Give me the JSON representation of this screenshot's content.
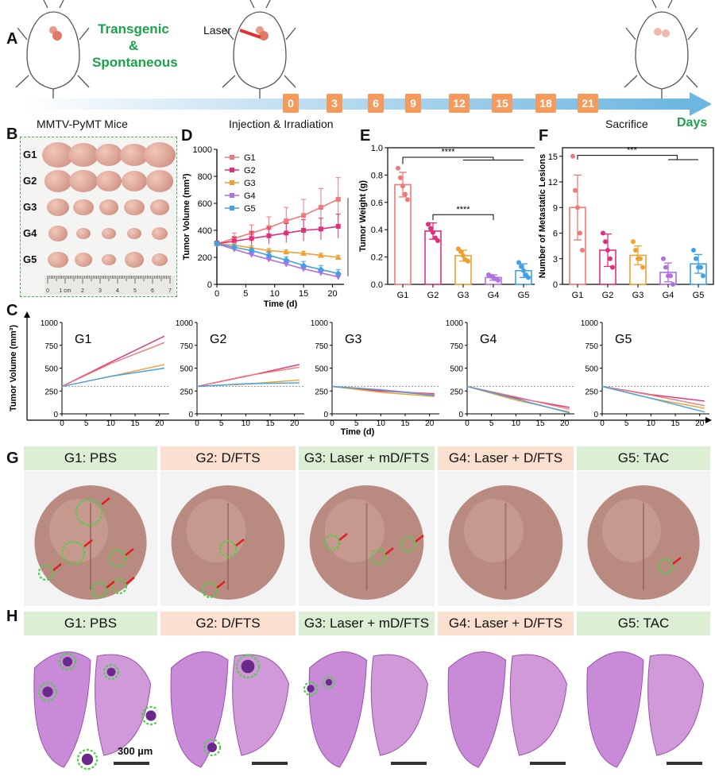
{
  "panelA": {
    "label": "A",
    "transgenic": "Transgenic",
    "amp": "&",
    "spontaneous": "Spontaneous",
    "laser": "Laser",
    "days": [
      "0",
      "3",
      "6",
      "9",
      "12",
      "15",
      "18",
      "21"
    ],
    "mice_label": "MMTV-PyMT Mice",
    "inj_label": "Injection & Irradiation",
    "sac_label": "Sacrifice",
    "days_label": "Days"
  },
  "panelB": {
    "label": "B",
    "groups": [
      "G1",
      "G2",
      "G3",
      "G4",
      "G5"
    ],
    "ruler_labels": [
      "0",
      "1 cm",
      "2",
      "3",
      "4",
      "5",
      "6",
      "7"
    ]
  },
  "colors": {
    "G1": "#f07878",
    "G2": "#e0307c",
    "G3": "#f0a030",
    "G4": "#b070e0",
    "G5": "#40a0e8",
    "accent_green": "#1aa34a",
    "arrow_blue": "#7cbde0",
    "day_box": "#f39a5c"
  },
  "chart_data": [
    {
      "id": "D",
      "type": "line",
      "panel": "D",
      "ylabel": "Tumor Volume (mm³)",
      "xlabel": "Time (d)",
      "xlim": [
        0,
        22
      ],
      "ylim": [
        0,
        1000
      ],
      "xticks": [
        0,
        5,
        10,
        15,
        20
      ],
      "yticks": [
        0,
        200,
        400,
        600,
        800,
        1000
      ],
      "x": [
        0,
        3,
        6,
        9,
        12,
        15,
        18,
        21
      ],
      "series": [
        {
          "name": "G1",
          "values": [
            300,
            340,
            380,
            420,
            470,
            510,
            570,
            630
          ],
          "err": [
            20,
            40,
            60,
            80,
            100,
            120,
            140,
            160
          ]
        },
        {
          "name": "G2",
          "values": [
            300,
            320,
            340,
            360,
            380,
            400,
            410,
            430
          ],
          "err": [
            20,
            30,
            50,
            60,
            70,
            80,
            80,
            90
          ]
        },
        {
          "name": "G3",
          "values": [
            300,
            290,
            270,
            250,
            240,
            230,
            215,
            200
          ],
          "err": [
            15,
            15,
            15,
            15,
            15,
            15,
            15,
            15
          ]
        },
        {
          "name": "G4",
          "values": [
            300,
            260,
            220,
            185,
            150,
            115,
            85,
            55
          ],
          "err": [
            15,
            15,
            20,
            20,
            20,
            20,
            20,
            20
          ]
        },
        {
          "name": "G5",
          "values": [
            300,
            275,
            250,
            215,
            180,
            140,
            110,
            80
          ],
          "err": [
            15,
            20,
            20,
            25,
            25,
            30,
            30,
            30
          ]
        }
      ],
      "significance": "****"
    },
    {
      "id": "E",
      "type": "bar",
      "panel": "E",
      "ylabel": "Tumor Weight (g)",
      "categories": [
        "G1",
        "G2",
        "G3",
        "G4",
        "G5"
      ],
      "values": [
        0.73,
        0.39,
        0.21,
        0.05,
        0.1
      ],
      "err": [
        0.09,
        0.06,
        0.04,
        0.02,
        0.05
      ],
      "points": [
        [
          0.85,
          0.78,
          0.72,
          0.66,
          0.62
        ],
        [
          0.44,
          0.41,
          0.38,
          0.34,
          0.32
        ],
        [
          0.26,
          0.24,
          0.21,
          0.18,
          0.17
        ],
        [
          0.07,
          0.06,
          0.05,
          0.04,
          0.03
        ],
        [
          0.16,
          0.13,
          0.1,
          0.07,
          0.05
        ]
      ],
      "ylim": [
        0,
        1.0
      ],
      "yticks": [
        0.0,
        0.2,
        0.4,
        0.6,
        0.8,
        1.0
      ],
      "sig": [
        "****",
        "****"
      ]
    },
    {
      "id": "F",
      "type": "bar",
      "panel": "F",
      "ylabel": "Number of Metastatic Lesions",
      "categories": [
        "G1",
        "G2",
        "G3",
        "G4",
        "G5"
      ],
      "values": [
        9.0,
        4.0,
        3.4,
        1.4,
        2.4
      ],
      "err": [
        3.8,
        1.9,
        1.1,
        1.1,
        1.1
      ],
      "points": [
        [
          15,
          11,
          9,
          6,
          4
        ],
        [
          6,
          5,
          4,
          3,
          2
        ],
        [
          5,
          4,
          3,
          3,
          2
        ],
        [
          3,
          2,
          1,
          1,
          0
        ],
        [
          4,
          3,
          2,
          2,
          1
        ]
      ],
      "ylim": [
        0,
        16
      ],
      "yticks": [
        0,
        3,
        6,
        9,
        12,
        15
      ],
      "sig": [
        "***"
      ]
    },
    {
      "id": "C",
      "type": "line",
      "panel": "C",
      "ylabel": "Tumor Volume (mm³)",
      "xlabel": "Time (d)",
      "xlim": [
        0,
        22
      ],
      "ylim": [
        0,
        1000
      ],
      "xticks": [
        0,
        5,
        10,
        15,
        20
      ],
      "yticks": [
        0,
        250,
        500,
        750,
        1000
      ],
      "baseline": 300,
      "subplots": [
        {
          "name": "G1",
          "lines": [
            [
              300,
              850
            ],
            [
              300,
              780
            ],
            [
              300,
              540
            ],
            [
              300,
              500
            ]
          ]
        },
        {
          "name": "G2",
          "lines": [
            [
              300,
              540
            ],
            [
              300,
              510
            ],
            [
              300,
              370
            ],
            [
              300,
              340
            ]
          ]
        },
        {
          "name": "G3",
          "lines": [
            [
              300,
              220
            ],
            [
              300,
              210
            ],
            [
              300,
              190
            ],
            [
              300,
              200
            ]
          ]
        },
        {
          "name": "G4",
          "lines": [
            [
              300,
              70
            ],
            [
              300,
              50
            ],
            [
              300,
              20
            ],
            [
              300,
              10
            ]
          ]
        },
        {
          "name": "G5",
          "lines": [
            [
              300,
              140
            ],
            [
              300,
              90
            ],
            [
              300,
              60
            ],
            [
              300,
              20
            ]
          ]
        }
      ]
    }
  ],
  "panelC": {
    "label": "C"
  },
  "panelD": {
    "label": "D"
  },
  "panelE": {
    "label": "E"
  },
  "panelF": {
    "label": "F"
  },
  "panelG": {
    "label": "G",
    "titles": [
      "G1: PBS",
      "G2: D/FTS",
      "G3: Laser + mD/FTS",
      "G4: Laser + D/FTS",
      "G5: TAC"
    ]
  },
  "panelH": {
    "label": "H",
    "titles": [
      "G1: PBS",
      "G2: D/FTS",
      "G3: Laser + mD/FTS",
      "G4: Laser + D/FTS",
      "G5: TAC"
    ],
    "scale": "300 µm"
  }
}
